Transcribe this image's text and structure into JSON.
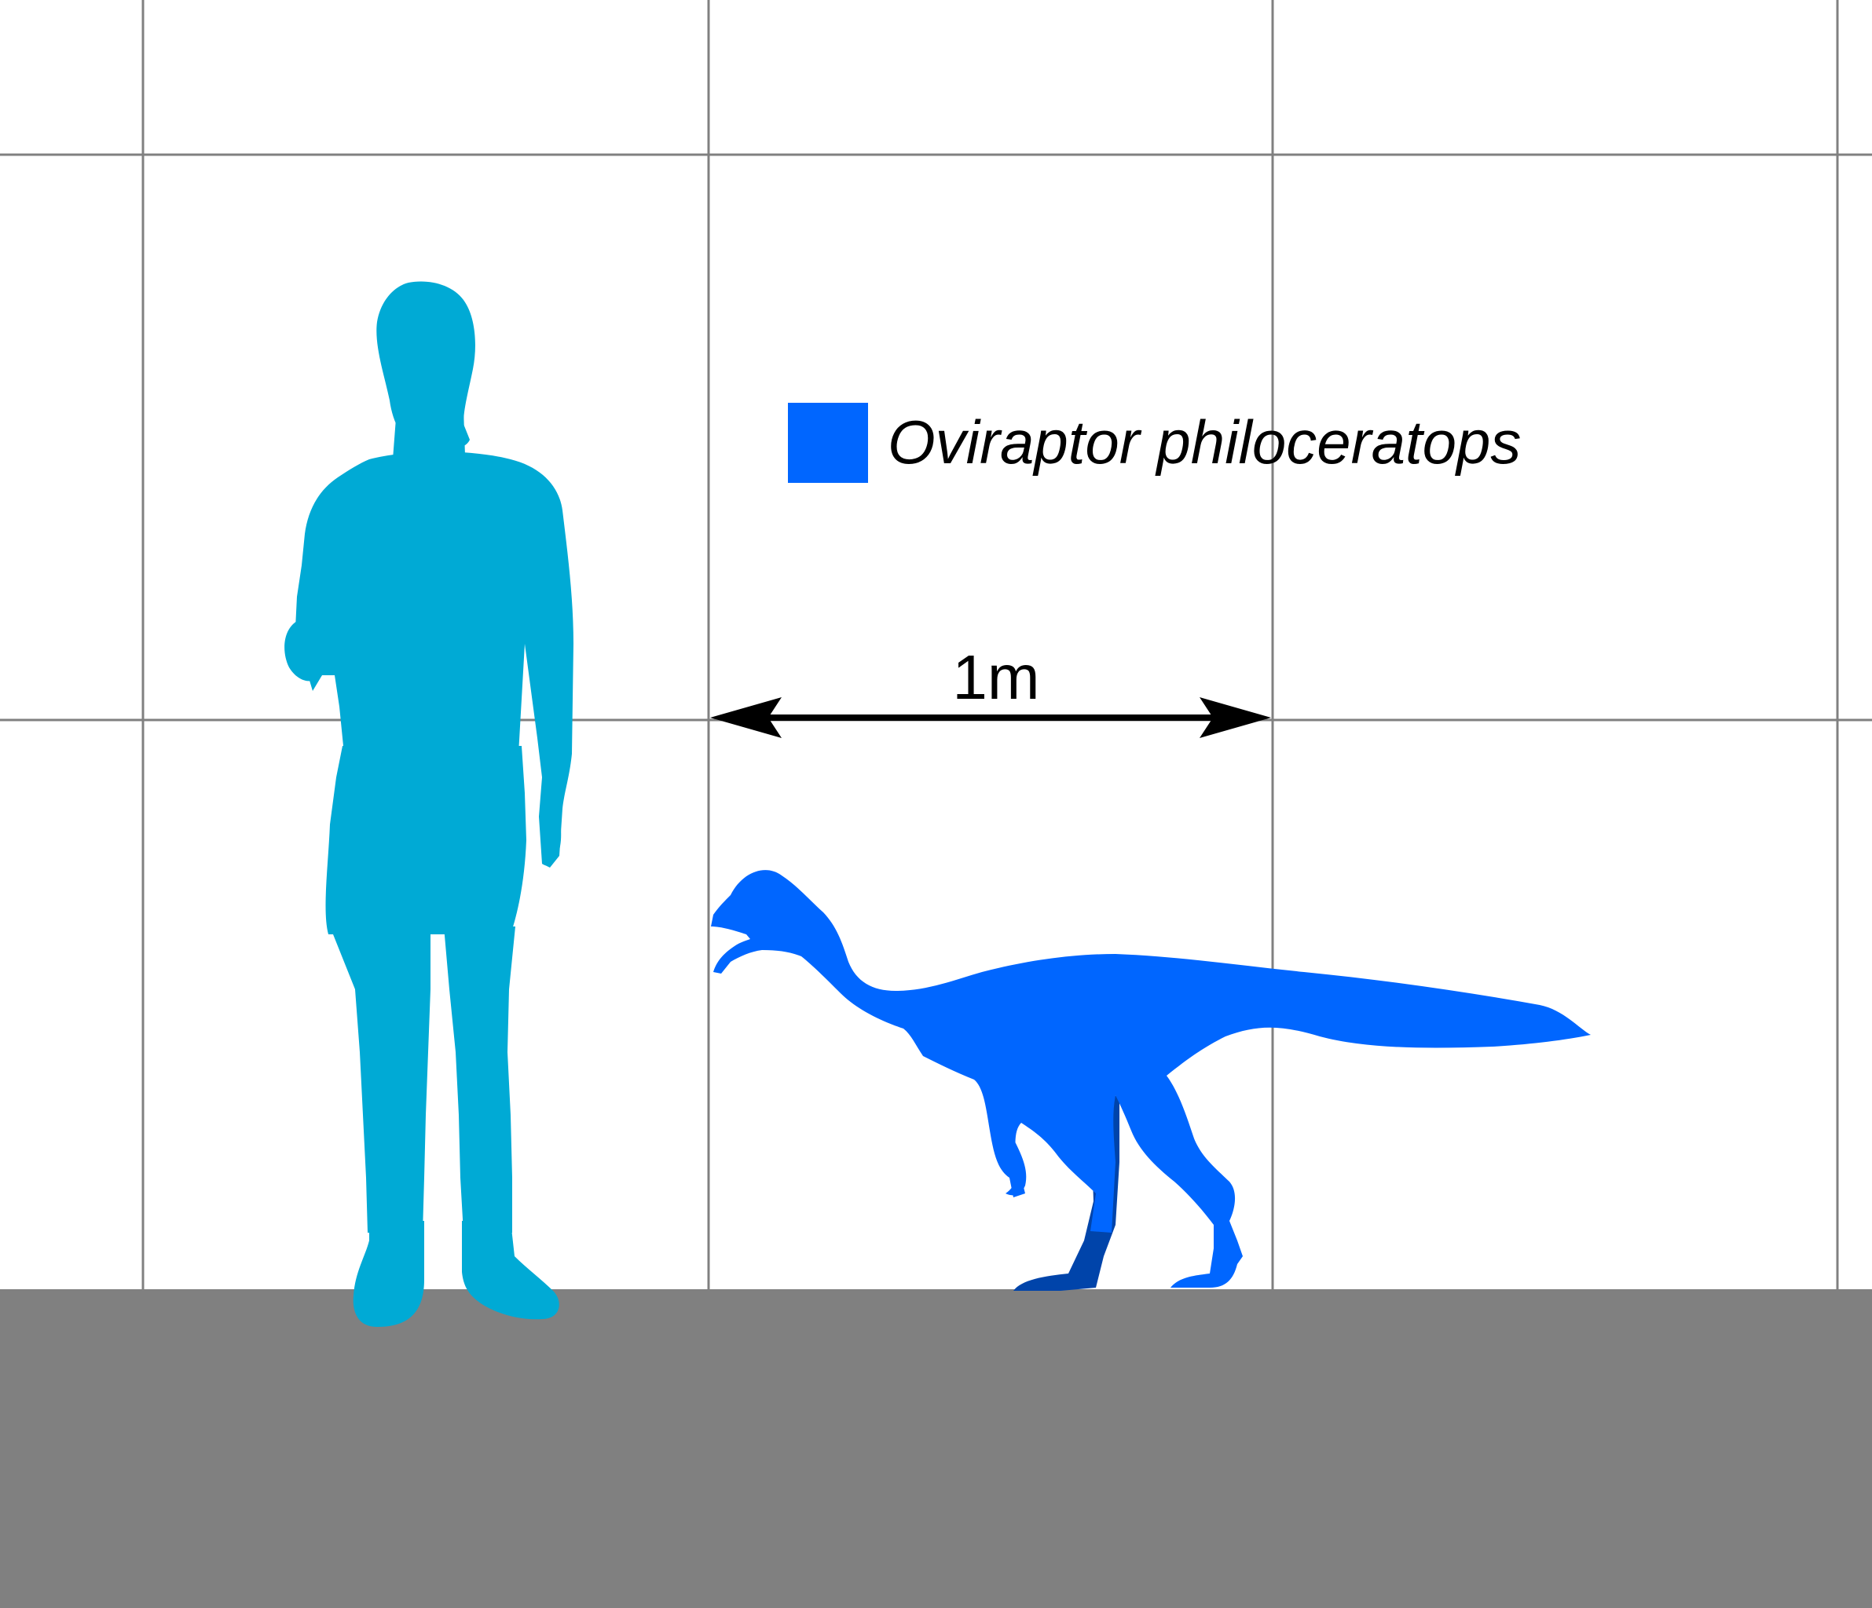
{
  "legend": {
    "species_name": "Oviraptor philoceratops",
    "swatch_color": "#0066ff"
  },
  "scale_bar": {
    "label": "1m",
    "length_m": 1
  },
  "grid": {
    "cell_size_m": 1,
    "line_color": "#808080"
  },
  "ground": {
    "color": "#808080"
  },
  "silhouettes": {
    "human": {
      "icon": "human-silhouette-icon",
      "color": "#00aad5"
    },
    "oviraptor": {
      "icon": "oviraptor-silhouette-icon",
      "color": "#0066ff",
      "far_leg_color": "#0044aa"
    }
  }
}
